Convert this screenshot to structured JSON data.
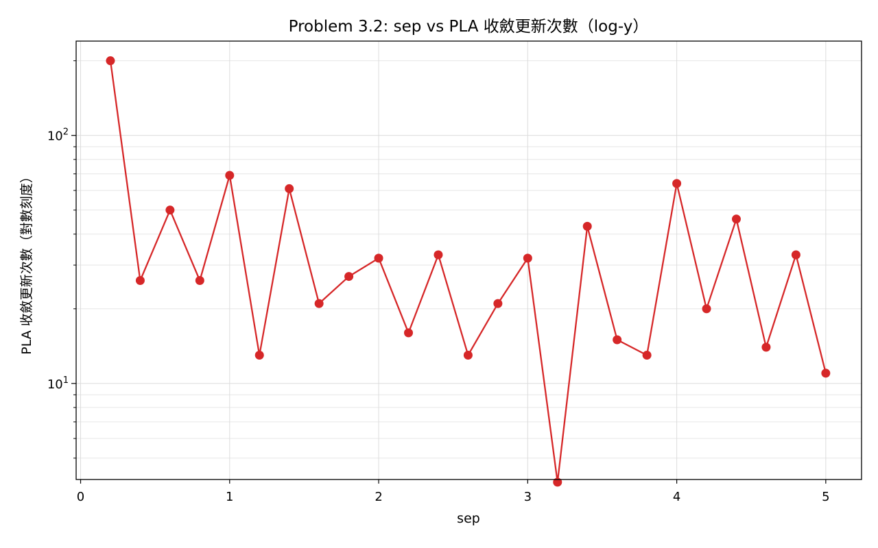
{
  "chart_data": {
    "type": "line",
    "title": "Problem 3.2: sep vs PLA 收斂更新次數（log-y）",
    "xlabel": "sep",
    "ylabel": "PLA 收斂更新次數（對數刻度）",
    "yscale": "log",
    "xlim": [
      -0.03,
      5.24
    ],
    "ylim": [
      4.1,
      240
    ],
    "grid": true,
    "x_ticks": [
      0,
      1,
      2,
      3,
      4,
      5
    ],
    "x_tick_labels": [
      "0",
      "1",
      "2",
      "3",
      "4",
      "5"
    ],
    "y_ticks": [
      10,
      100
    ],
    "y_tick_labels": [
      {
        "base": "10",
        "exp": "1"
      },
      {
        "base": "10",
        "exp": "2"
      }
    ],
    "series": [
      {
        "color": "#d62728",
        "x": [
          0.2,
          0.4,
          0.6,
          0.8,
          1.0,
          1.2,
          1.4,
          1.6,
          1.8,
          2.0,
          2.2,
          2.4,
          2.6,
          2.8,
          3.0,
          3.2,
          3.4,
          3.6,
          3.8,
          4.0,
          4.2,
          4.4,
          4.6,
          4.8,
          5.0
        ],
        "y": [
          200,
          26,
          50,
          26,
          69,
          13,
          61,
          21,
          27,
          32,
          16,
          33,
          13,
          21,
          32,
          4,
          43,
          15,
          13,
          64,
          20,
          46,
          14,
          33,
          11
        ]
      }
    ]
  }
}
